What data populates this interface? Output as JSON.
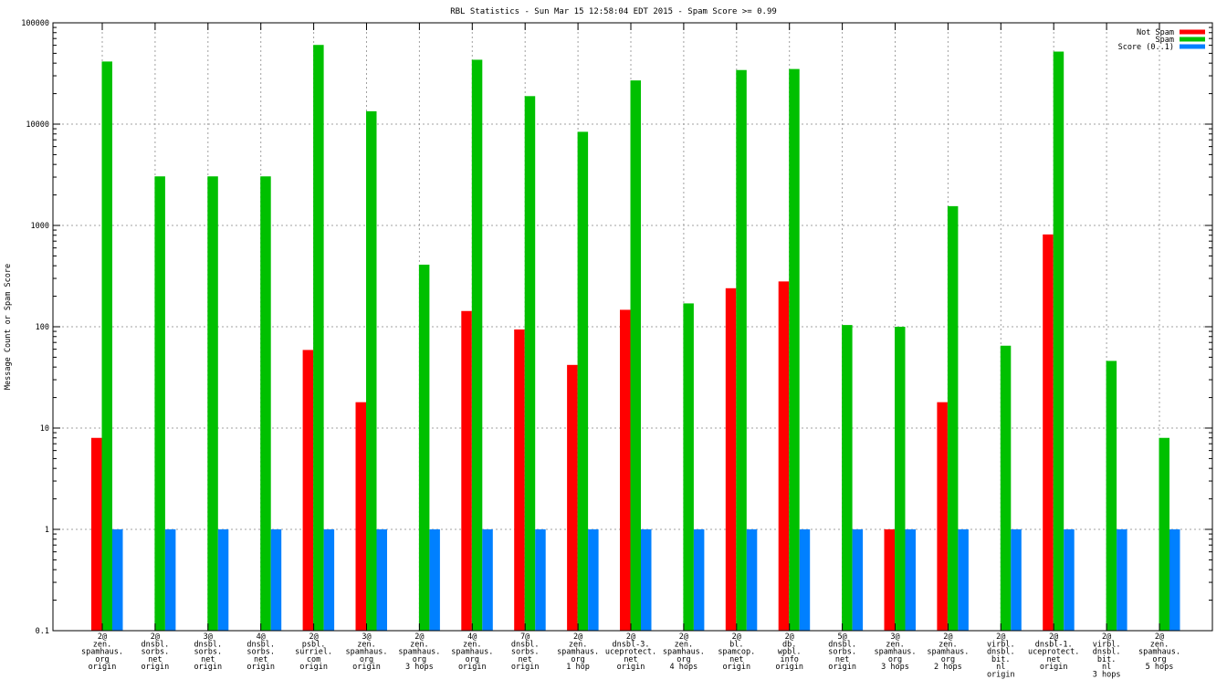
{
  "chart_data": {
    "type": "bar",
    "title": "RBL Statistics - Sun Mar 15 12:58:04 EDT 2015 - Spam Score >= 0.99",
    "xlabel": "",
    "ylabel": "Message Count or Spam Score",
    "yscale": "log",
    "ylim": [
      0.1,
      100000
    ],
    "yticks": [
      "0.1",
      "1",
      "10",
      "100",
      "1000",
      "10000",
      "100000"
    ],
    "grid": true,
    "legend_position": "top-right",
    "categories": [
      [
        "2@",
        "zen.",
        "spamhaus.",
        "org",
        "origin"
      ],
      [
        "2@",
        "dnsbl.",
        "sorbs.",
        "net",
        "origin"
      ],
      [
        "3@",
        "dnsbl.",
        "sorbs.",
        "net",
        "origin"
      ],
      [
        "4@",
        "dnsbl.",
        "sorbs.",
        "net",
        "origin"
      ],
      [
        "2@",
        "psbl.",
        "surriel.",
        "com",
        "origin"
      ],
      [
        "3@",
        "zen.",
        "spamhaus.",
        "org",
        "origin"
      ],
      [
        "2@",
        "zen.",
        "spamhaus.",
        "org",
        "3 hops"
      ],
      [
        "4@",
        "zen.",
        "spamhaus.",
        "org",
        "origin"
      ],
      [
        "7@",
        "dnsbl.",
        "sorbs.",
        "net",
        "origin"
      ],
      [
        "2@",
        "zen.",
        "spamhaus.",
        "org",
        "1 hop"
      ],
      [
        "2@",
        "dnsbl-3.",
        "uceprotect.",
        "net",
        "origin"
      ],
      [
        "2@",
        "zen.",
        "spamhaus.",
        "org",
        "4 hops"
      ],
      [
        "2@",
        "bl.",
        "spamcop.",
        "net",
        "origin"
      ],
      [
        "2@",
        "db.",
        "wpbl.",
        "info",
        "origin"
      ],
      [
        "5@",
        "dnsbl.",
        "sorbs.",
        "net",
        "origin"
      ],
      [
        "3@",
        "zen.",
        "spamhaus.",
        "org",
        "3 hops"
      ],
      [
        "2@",
        "zen.",
        "spamhaus.",
        "org",
        "2 hops"
      ],
      [
        "2@",
        "virbl.",
        "dnsbl.",
        "bit.",
        "nl",
        "origin"
      ],
      [
        "2@",
        "dnsbl-1.",
        "uceprotect.",
        "net",
        "origin"
      ],
      [
        "2@",
        "virbl.",
        "dnsbl.",
        "bit.",
        "nl",
        "3 hops"
      ],
      [
        "2@",
        "zen.",
        "spamhaus.",
        "org",
        "5 hops"
      ]
    ],
    "series": [
      {
        "name": "Not Spam",
        "color": "#ff0000",
        "values": [
          8,
          0,
          0,
          0,
          59,
          18,
          0,
          143,
          94,
          42,
          147,
          0,
          240,
          280,
          0,
          1,
          18,
          0,
          815,
          0,
          0
        ]
      },
      {
        "name": "Spam",
        "color": "#00c000",
        "values": [
          41500,
          3050,
          3050,
          3050,
          60500,
          13400,
          410,
          43200,
          18900,
          8400,
          27000,
          170,
          34200,
          35000,
          104,
          100,
          1550,
          65,
          52000,
          46,
          8
        ]
      },
      {
        "name": "Score (0..1)",
        "color": "#0080ff",
        "values": [
          1,
          1,
          1,
          1,
          1,
          1,
          1,
          1,
          1,
          1,
          1,
          1,
          1,
          1,
          1,
          1,
          1,
          1,
          1,
          1,
          1
        ]
      }
    ]
  }
}
